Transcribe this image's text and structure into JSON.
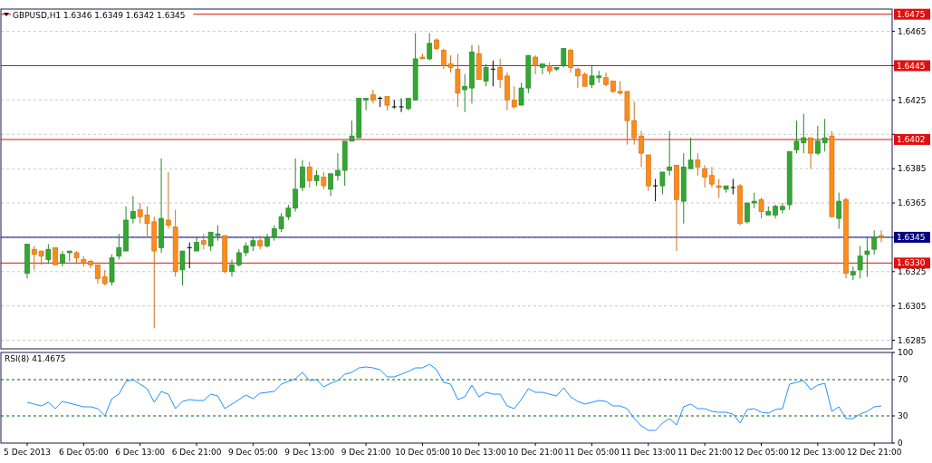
{
  "chart_data": [
    {
      "type": "candlestick",
      "title": "GBPUSD,H1  1.6346 1.6349 1.6342 1.6345",
      "categories": [
        null,
        null,
        null,
        null,
        null,
        null,
        null,
        null,
        null,
        null,
        null,
        null,
        null,
        null,
        null,
        null,
        null,
        null,
        null,
        null,
        null,
        null,
        null,
        null,
        null,
        null,
        null,
        null,
        null,
        null,
        null,
        null,
        null,
        null,
        null,
        null,
        null,
        null,
        null,
        null,
        null,
        null,
        null,
        null,
        null,
        null,
        null,
        null,
        null,
        null,
        null,
        null,
        null,
        null,
        null,
        null,
        null,
        null,
        null,
        null,
        null,
        null,
        null,
        null,
        null,
        null,
        null,
        null,
        null,
        null,
        null,
        null,
        null,
        null,
        null,
        null,
        null,
        null,
        null,
        null,
        null,
        null,
        null,
        null,
        null,
        null,
        null,
        null,
        null,
        null,
        null,
        null,
        null,
        null,
        null,
        null,
        null,
        null,
        null,
        null,
        null,
        null,
        null,
        null,
        null,
        null,
        null,
        null,
        null,
        null,
        null,
        null,
        null,
        null,
        null,
        null,
        null,
        null,
        null,
        null,
        null,
        null
      ],
      "ohlc": [
        [
          1.6324,
          1.6341,
          1.6321,
          1.6341
        ],
        [
          1.6338,
          1.634,
          1.6326,
          1.6335
        ],
        [
          1.6337,
          1.6337,
          1.6329,
          1.6334
        ],
        [
          1.6332,
          1.6341,
          1.633,
          1.6338
        ],
        [
          1.6339,
          1.6339,
          1.6329,
          1.6329
        ],
        [
          1.633,
          1.6337,
          1.6328,
          1.6335
        ],
        [
          1.6336,
          1.6337,
          1.6331,
          1.6337
        ],
        [
          1.6336,
          1.6337,
          1.633,
          1.6333
        ],
        [
          1.6332,
          1.6334,
          1.6328,
          1.633
        ],
        [
          1.6331,
          1.6332,
          1.6327,
          1.6329
        ],
        [
          1.6329,
          1.6329,
          1.6318,
          1.6321
        ],
        [
          1.6322,
          1.6326,
          1.6317,
          1.6318
        ],
        [
          1.6319,
          1.6335,
          1.6317,
          1.6333
        ],
        [
          1.6334,
          1.6347,
          1.6332,
          1.6339
        ],
        [
          1.6337,
          1.6363,
          1.6337,
          1.6355
        ],
        [
          1.6356,
          1.6369,
          1.6353,
          1.636
        ],
        [
          1.6361,
          1.6365,
          1.6353,
          1.6357
        ],
        [
          1.6358,
          1.6363,
          1.6345,
          1.6353
        ],
        [
          1.6354,
          1.6357,
          1.6292,
          1.6337
        ],
        [
          1.6339,
          1.6391,
          1.6336,
          1.6356
        ],
        [
          1.6355,
          1.6383,
          1.635,
          1.6352
        ],
        [
          1.6351,
          1.6361,
          1.6322,
          1.6325
        ],
        [
          1.6326,
          1.6337,
          1.6317,
          1.6337
        ],
        [
          1.6339,
          1.6342,
          1.6327,
          1.6339
        ],
        [
          1.6337,
          1.6345,
          1.6337,
          1.6342
        ],
        [
          1.6343,
          1.6347,
          1.6338,
          1.6341
        ],
        [
          1.634,
          1.6348,
          1.6337,
          1.6348
        ],
        [
          1.6346,
          1.6352,
          1.6343,
          1.6347
        ],
        [
          1.6346,
          1.6346,
          1.6324,
          1.6325
        ],
        [
          1.6325,
          1.6332,
          1.6322,
          1.6329
        ],
        [
          1.6329,
          1.6338,
          1.6328,
          1.6336
        ],
        [
          1.6336,
          1.6342,
          1.6334,
          1.634
        ],
        [
          1.634,
          1.6345,
          1.6337,
          1.6343
        ],
        [
          1.6343,
          1.6346,
          1.6338,
          1.634
        ],
        [
          1.634,
          1.6347,
          1.6339,
          1.6345
        ],
        [
          1.6345,
          1.6352,
          1.6343,
          1.635
        ],
        [
          1.635,
          1.6359,
          1.6348,
          1.6357
        ],
        [
          1.6357,
          1.6364,
          1.6355,
          1.6362
        ],
        [
          1.6362,
          1.6391,
          1.636,
          1.6373
        ],
        [
          1.6374,
          1.639,
          1.6372,
          1.6386
        ],
        [
          1.6386,
          1.6389,
          1.6374,
          1.6378
        ],
        [
          1.6378,
          1.6384,
          1.6375,
          1.6381
        ],
        [
          1.638,
          1.6383,
          1.6373,
          1.6375
        ],
        [
          1.6373,
          1.6382,
          1.6369,
          1.6382
        ],
        [
          1.6381,
          1.6394,
          1.6378,
          1.6384
        ],
        [
          1.6384,
          1.6401,
          1.6375,
          1.6401
        ],
        [
          1.6401,
          1.6413,
          1.6401,
          1.6404
        ],
        [
          1.6403,
          1.6426,
          1.6403,
          1.6426
        ],
        [
          1.6425,
          1.6426,
          1.6419,
          1.6426
        ],
        [
          1.6428,
          1.6431,
          1.6423,
          1.6425
        ],
        [
          1.6426,
          1.6427,
          1.6421,
          1.6426
        ],
        [
          1.6427,
          1.6427,
          1.6419,
          1.6422
        ],
        [
          1.6421,
          1.6425,
          1.642,
          1.6421
        ],
        [
          1.6421,
          1.6426,
          1.6418,
          1.6421
        ],
        [
          1.642,
          1.6426,
          1.6419,
          1.6426
        ],
        [
          1.6425,
          1.6464,
          1.6425,
          1.6449
        ],
        [
          1.645,
          1.6452,
          1.6449,
          1.6449
        ],
        [
          1.6449,
          1.6464,
          1.6448,
          1.6458
        ],
        [
          1.646,
          1.6461,
          1.6454,
          1.6455
        ],
        [
          1.6454,
          1.6455,
          1.6443,
          1.6445
        ],
        [
          1.6446,
          1.6451,
          1.6441,
          1.6444
        ],
        [
          1.6443,
          1.6452,
          1.6421,
          1.6429
        ],
        [
          1.6431,
          1.644,
          1.6418,
          1.6433
        ],
        [
          1.6432,
          1.6457,
          1.6423,
          1.6453
        ],
        [
          1.6452,
          1.6457,
          1.6437,
          1.6437
        ],
        [
          1.6436,
          1.6446,
          1.6433,
          1.6444
        ],
        [
          1.6443,
          1.6448,
          1.6433,
          1.6443
        ],
        [
          1.6444,
          1.6449,
          1.6432,
          1.6437
        ],
        [
          1.6439,
          1.6441,
          1.6419,
          1.6425
        ],
        [
          1.6425,
          1.6433,
          1.642,
          1.6421
        ],
        [
          1.6422,
          1.6435,
          1.6422,
          1.6432
        ],
        [
          1.6432,
          1.6451,
          1.6429,
          1.6451
        ],
        [
          1.645,
          1.6451,
          1.644,
          1.6445
        ],
        [
          1.6444,
          1.6446,
          1.644,
          1.6446
        ],
        [
          1.6445,
          1.6447,
          1.644,
          1.6442
        ],
        [
          1.6443,
          1.6444,
          1.6442,
          1.6444
        ],
        [
          1.6445,
          1.6455,
          1.6444,
          1.6455
        ],
        [
          1.6454,
          1.6455,
          1.6441,
          1.6444
        ],
        [
          1.6443,
          1.6444,
          1.6432,
          1.6439
        ],
        [
          1.644,
          1.6441,
          1.6433,
          1.6433
        ],
        [
          1.6434,
          1.6445,
          1.6432,
          1.6439
        ],
        [
          1.6438,
          1.6442,
          1.6435,
          1.6439
        ],
        [
          1.6438,
          1.6441,
          1.6433,
          1.6434
        ],
        [
          1.6436,
          1.6436,
          1.6429,
          1.643
        ],
        [
          1.643,
          1.6436,
          1.6428,
          1.6429
        ],
        [
          1.643,
          1.643,
          1.6399,
          1.6413
        ],
        [
          1.6413,
          1.6424,
          1.6399,
          1.6403
        ],
        [
          1.6404,
          1.6407,
          1.6386,
          1.6394
        ],
        [
          1.6393,
          1.6393,
          1.6372,
          1.6375
        ],
        [
          1.6375,
          1.6379,
          1.6366,
          1.6375
        ],
        [
          1.6375,
          1.6383,
          1.637,
          1.6383
        ],
        [
          1.6384,
          1.6407,
          1.6381,
          1.6386
        ],
        [
          1.6387,
          1.6387,
          1.6337,
          1.6367
        ],
        [
          1.6366,
          1.6394,
          1.6353,
          1.6386
        ],
        [
          1.6385,
          1.6403,
          1.6385,
          1.639
        ],
        [
          1.639,
          1.6394,
          1.6381,
          1.6386
        ],
        [
          1.6385,
          1.6387,
          1.6374,
          1.638
        ],
        [
          1.6381,
          1.6386,
          1.6374,
          1.6376
        ],
        [
          1.6375,
          1.6379,
          1.6368,
          1.6374
        ],
        [
          1.6373,
          1.6375,
          1.6371,
          1.6375
        ],
        [
          1.6374,
          1.6379,
          1.637,
          1.6374
        ],
        [
          1.6375,
          1.6376,
          1.6352,
          1.6353
        ],
        [
          1.6354,
          1.6365,
          1.6353,
          1.6365
        ],
        [
          1.6365,
          1.6371,
          1.6362,
          1.6366
        ],
        [
          1.6367,
          1.6368,
          1.6356,
          1.636
        ],
        [
          1.6358,
          1.6363,
          1.6358,
          1.636
        ],
        [
          1.6358,
          1.6364,
          1.6356,
          1.6363
        ],
        [
          1.6361,
          1.6365,
          1.6359,
          1.6363
        ],
        [
          1.6364,
          1.6395,
          1.6361,
          1.6395
        ],
        [
          1.6396,
          1.6413,
          1.6394,
          1.6401
        ],
        [
          1.64,
          1.6417,
          1.6394,
          1.6403
        ],
        [
          1.6403,
          1.6403,
          1.6385,
          1.6394
        ],
        [
          1.6394,
          1.641,
          1.6393,
          1.6401
        ],
        [
          1.64,
          1.6414,
          1.6395,
          1.6403
        ],
        [
          1.6404,
          1.6407,
          1.6357,
          1.6357
        ],
        [
          1.6356,
          1.6371,
          1.635,
          1.6366
        ],
        [
          1.6367,
          1.6368,
          1.6321,
          1.6324
        ],
        [
          1.6323,
          1.6328,
          1.632,
          1.6325
        ],
        [
          1.6326,
          1.634,
          1.6321,
          1.6334
        ],
        [
          1.6335,
          1.6345,
          1.6322,
          1.6337
        ],
        [
          1.6338,
          1.6349,
          1.6335,
          1.6345
        ],
        [
          1.6346,
          1.6349,
          1.6342,
          1.6345
        ]
      ],
      "colors": [
        "#32a832",
        "#ff8c1a",
        "#ff8c1a",
        "#32a832",
        "#ff8c1a",
        "#32a832",
        "#32a832",
        "#ff8c1a",
        "#ff8c1a",
        "#ff8c1a",
        "#ff8c1a",
        "#ff8c1a",
        "#32a832",
        "#32a832",
        "#32a832",
        "#32a832",
        "#ff8c1a",
        "#ff8c1a",
        "#ff8c1a",
        "#32a832",
        "#ff8c1a",
        "#ff8c1a",
        "#32a832",
        "#000000",
        "#32a832",
        "#ff8c1a",
        "#32a832",
        "#32a832",
        "#ff8c1a",
        "#32a832",
        "#32a832",
        "#32a832",
        "#32a832",
        "#ff8c1a",
        "#32a832",
        "#32a832",
        "#32a832",
        "#32a832",
        "#32a832",
        "#32a832",
        "#ff8c1a",
        "#32a832",
        "#ff8c1a",
        "#32a832",
        "#32a832",
        "#32a832",
        "#32a832",
        "#32a832",
        "#32a832",
        "#ff8c1a",
        "#000000",
        "#ff8c1a",
        "#000000",
        "#000000",
        "#32a832",
        "#32a832",
        "#ff8c1a",
        "#32a832",
        "#ff8c1a",
        "#ff8c1a",
        "#ff8c1a",
        "#ff8c1a",
        "#32a832",
        "#32a832",
        "#ff8c1a",
        "#32a832",
        "#000000",
        "#ff8c1a",
        "#ff8c1a",
        "#ff8c1a",
        "#32a832",
        "#32a832",
        "#ff8c1a",
        "#32a832",
        "#ff8c1a",
        "#32a832",
        "#32a832",
        "#ff8c1a",
        "#ff8c1a",
        "#ff8c1a",
        "#32a832",
        "#32a832",
        "#ff8c1a",
        "#ff8c1a",
        "#ff8c1a",
        "#ff8c1a",
        "#ff8c1a",
        "#ff8c1a",
        "#ff8c1a",
        "#000000",
        "#32a832",
        "#32a832",
        "#ff8c1a",
        "#32a832",
        "#32a832",
        "#ff8c1a",
        "#ff8c1a",
        "#ff8c1a",
        "#ff8c1a",
        "#32a832",
        "#000000",
        "#ff8c1a",
        "#32a832",
        "#32a832",
        "#ff8c1a",
        "#32a832",
        "#32a832",
        "#32a832",
        "#32a832",
        "#32a832",
        "#32a832",
        "#ff8c1a",
        "#32a832",
        "#32a832",
        "#ff8c1a",
        "#32a832",
        "#ff8c1a",
        "#32a832",
        "#32a832",
        "#32a832",
        "#32a832",
        "#ff8c1a"
      ],
      "ylim": [
        1.628,
        1.6478
      ],
      "yticks": [
        1.6285,
        1.6305,
        1.6325,
        1.6345,
        1.6365,
        1.6385,
        {
          "value": 1.6405,
          "label": null
        },
        1.6425,
        {
          "value": 1.6445,
          "label": null
        },
        1.6465
      ],
      "grid": "y",
      "tick_labels": "y",
      "ref_lines": [
        {
          "axis": "y",
          "value": 1.6475,
          "label": "1.6475",
          "color": "#e01010"
        },
        {
          "axis": "y",
          "value": 1.6445,
          "label": "1.6445",
          "color": "#e01010"
        },
        {
          "axis": "y",
          "value": 1.6402,
          "label": "1.6402",
          "color": "#e01010"
        },
        {
          "axis": "y",
          "value": 1.633,
          "label": "1.6330",
          "color": "#e01010"
        },
        {
          "axis": "y",
          "value": 1.6345,
          "label": "1.6345",
          "color": "#000080"
        }
      ]
    },
    {
      "type": "line",
      "title": "RSI(8) 41.4675",
      "categories": [
        "5 Dec 2013",
        null,
        null,
        null,
        null,
        null,
        null,
        null,
        "6 Dec 05:00",
        null,
        null,
        null,
        null,
        null,
        null,
        null,
        "6 Dec 13:00",
        null,
        null,
        null,
        null,
        null,
        null,
        null,
        "6 Dec 21:00",
        null,
        null,
        null,
        null,
        null,
        null,
        null,
        "9 Dec 05:00",
        null,
        null,
        null,
        null,
        null,
        null,
        null,
        "9 Dec 13:00",
        null,
        null,
        null,
        null,
        null,
        null,
        null,
        "9 Dec 21:00",
        null,
        null,
        null,
        null,
        null,
        null,
        null,
        "10 Dec 05:00",
        null,
        null,
        null,
        null,
        null,
        null,
        null,
        "10 Dec 13:00",
        null,
        null,
        null,
        null,
        null,
        null,
        null,
        "10 Dec 21:00",
        null,
        null,
        null,
        null,
        null,
        null,
        null,
        "11 Dec 05:00",
        null,
        null,
        null,
        null,
        null,
        null,
        null,
        "11 Dec 13:00",
        null,
        null,
        null,
        null,
        null,
        null,
        null,
        "11 Dec 21:00",
        null,
        null,
        null,
        null,
        null,
        null,
        null,
        "12 Dec 05:00",
        null,
        null,
        null,
        null,
        null,
        null,
        null,
        "12 Dec 13:00",
        null,
        null,
        null,
        null,
        null,
        null,
        null,
        "12 Dec 21:00",
        null
      ],
      "series": [
        {
          "color": "#1e90ff",
          "values": [
            45,
            43,
            41,
            45,
            38,
            46,
            44,
            42,
            40,
            40,
            38,
            30,
            49,
            54,
            68,
            70,
            65,
            60,
            45,
            57,
            54,
            38,
            46,
            48,
            47,
            47,
            54,
            52,
            38,
            43,
            48,
            53,
            49,
            55,
            56,
            57,
            65,
            68,
            71,
            78,
            69,
            70,
            62,
            66,
            69,
            76,
            78,
            83,
            84,
            83,
            81,
            73,
            73,
            76,
            79,
            83,
            83,
            87,
            81,
            67,
            65,
            48,
            51,
            64,
            51,
            56,
            54,
            54,
            41,
            38,
            48,
            60,
            56,
            56,
            54,
            52,
            61,
            51,
            46,
            43,
            45,
            47,
            46,
            41,
            41,
            38,
            27,
            19,
            14,
            14,
            22,
            27,
            20,
            40,
            43,
            38,
            38,
            35,
            34,
            34,
            32,
            22,
            37,
            38,
            34,
            33,
            37,
            38,
            65,
            67,
            69,
            59,
            64,
            66,
            35,
            40,
            27,
            27,
            32,
            35,
            40,
            41
          ]
        }
      ],
      "ylim": [
        0,
        100
      ],
      "yticks": [
        0,
        30,
        70,
        100
      ],
      "ref_lines": [
        {
          "axis": "y",
          "value": 70,
          "color": "#006400",
          "line_style": "dashed"
        },
        {
          "axis": "y",
          "value": 30,
          "color": "#006400",
          "line_style": "dashed"
        }
      ]
    }
  ]
}
